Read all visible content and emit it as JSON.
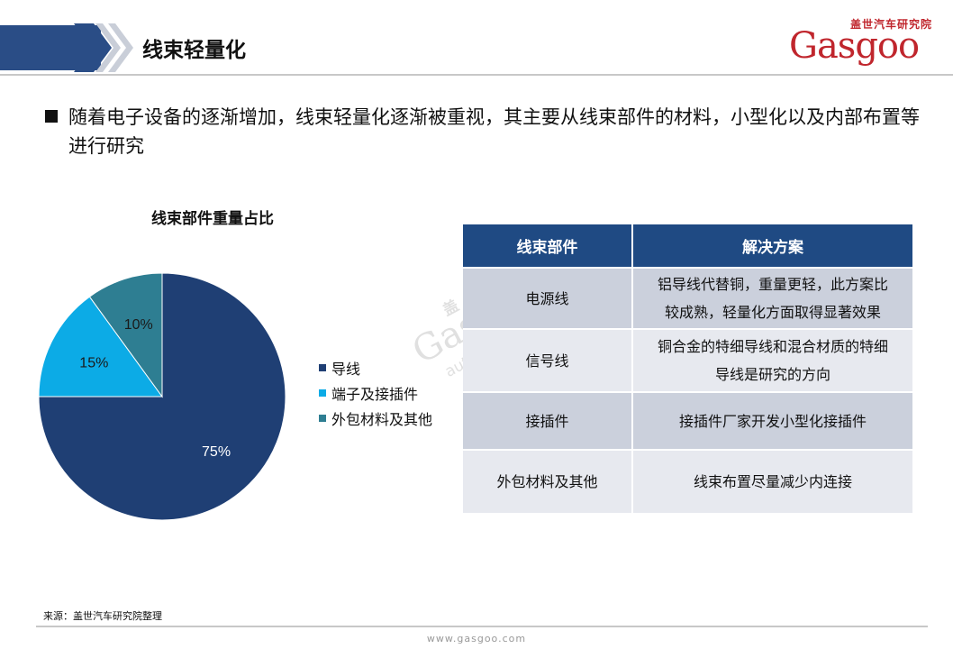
{
  "page": {
    "title": "线束轻量化",
    "bullet": "随着电子设备的逐渐增加，线束轻量化逐渐被重视，其主要从线束部件的材料，小型化以及内部布置等进行研究",
    "source": "来源：盖世汽车研究院整理",
    "footer_url": "www.gasgoo.com"
  },
  "logo": {
    "cn": "盖世汽车研究院",
    "word": "Gasgoo"
  },
  "watermark": {
    "cn": "盖 世 汽 车",
    "word": "Gasgoo",
    "url": "auto.gasgoo.com"
  },
  "chart_data": {
    "type": "pie",
    "title": "线束部件重量占比",
    "legend_position": "right",
    "series": [
      {
        "name": "导线",
        "value": 75,
        "label": "75%",
        "color": "#1f3f74"
      },
      {
        "name": "端子及接插件",
        "value": 15,
        "label": "15%",
        "color": "#0cabe6"
      },
      {
        "name": "外包材料及其他",
        "value": 10,
        "label": "10%",
        "color": "#2e7e92"
      }
    ]
  },
  "table": {
    "headers": [
      "线束部件",
      "解决方案"
    ],
    "rows": [
      {
        "part": "电源线",
        "solution_lines": [
          "铝导线代替铜，重量更轻，此方案比",
          "较成熟，轻量化方面取得显著效果"
        ]
      },
      {
        "part": "信号线",
        "solution_lines": [
          "铜合金的特细导线和混合材质的特细",
          "导线是研究的方向"
        ]
      },
      {
        "part": "接插件",
        "solution_lines": [
          "接插件厂家开发小型化接插件"
        ]
      },
      {
        "part": "外包材料及其他",
        "solution_lines": [
          "线束布置尽量减少内连接"
        ]
      }
    ]
  },
  "colors": {
    "title_band": "#2a4d86",
    "table_header": "#1f4a83",
    "logo_red": "#c0262d"
  }
}
